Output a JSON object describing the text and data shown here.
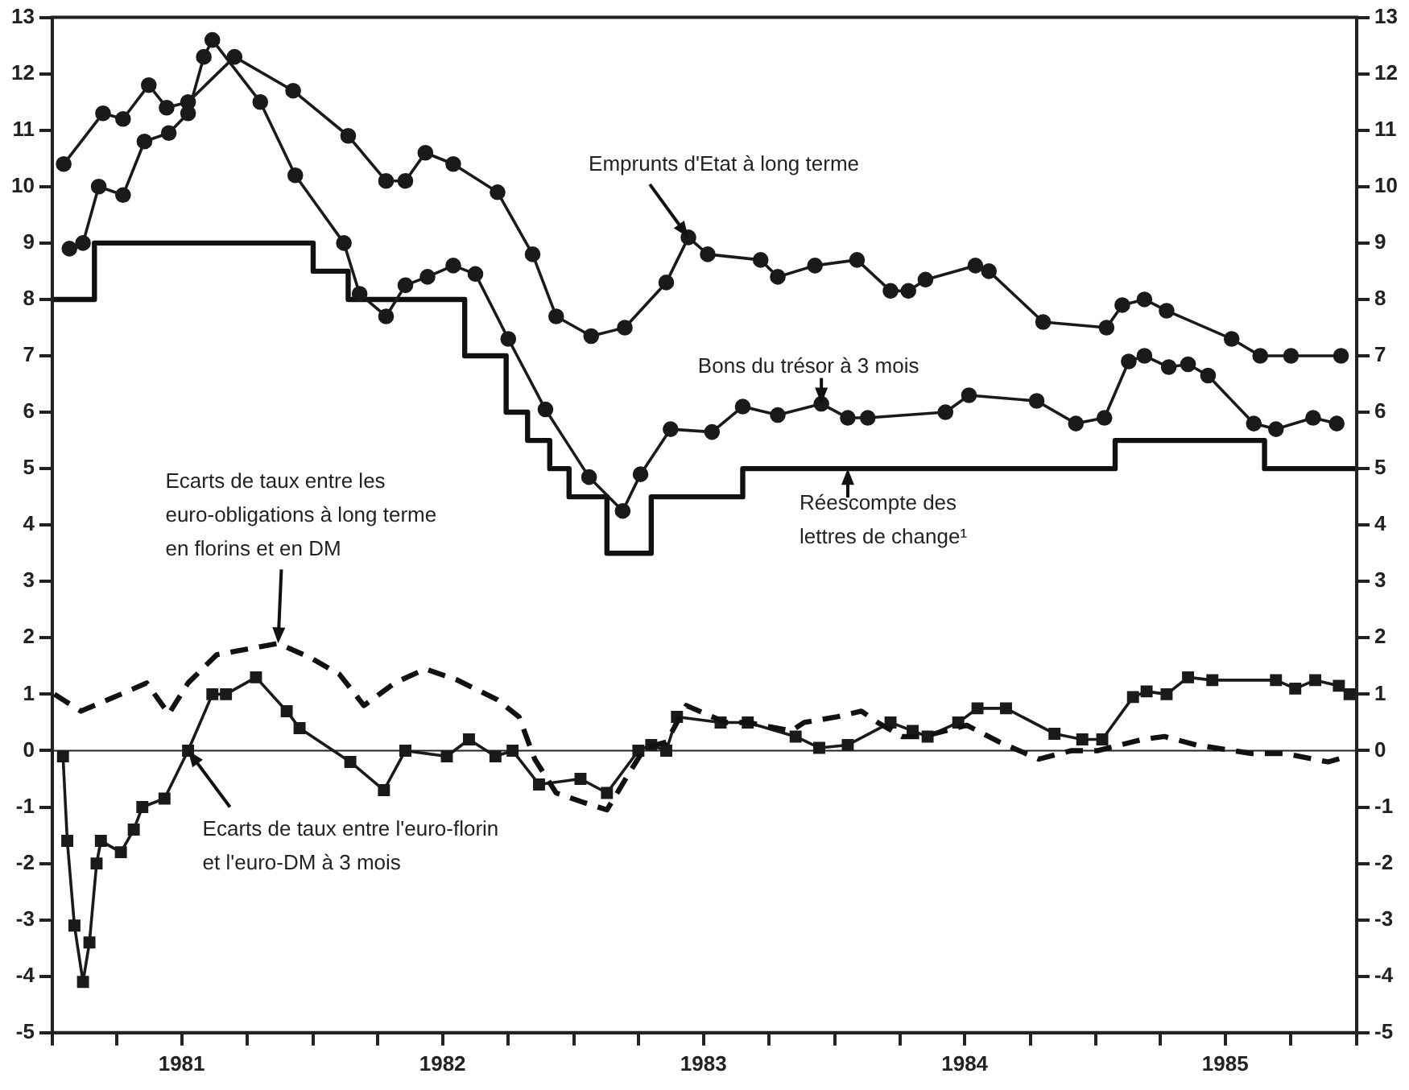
{
  "chart_data": {
    "type": "line",
    "xlim": [
      "1981-01-01",
      "1986-01-01"
    ],
    "xticks": [
      {
        "value": "1981-01-01",
        "label": null
      },
      {
        "value": "1981-04-01",
        "label": null
      },
      {
        "value": "1981-07-01",
        "label": "1981"
      },
      {
        "value": "1981-10-01",
        "label": null
      },
      {
        "value": "1982-01-01",
        "label": null
      },
      {
        "value": "1982-04-01",
        "label": null
      },
      {
        "value": "1982-07-01",
        "label": "1982"
      },
      {
        "value": "1982-10-01",
        "label": null
      },
      {
        "value": "1983-01-01",
        "label": null
      },
      {
        "value": "1983-04-01",
        "label": null
      },
      {
        "value": "1983-07-01",
        "label": "1983"
      },
      {
        "value": "1983-10-01",
        "label": null
      },
      {
        "value": "1984-01-01",
        "label": null
      },
      {
        "value": "1984-04-01",
        "label": null
      },
      {
        "value": "1984-07-01",
        "label": "1984"
      },
      {
        "value": "1984-10-01",
        "label": null
      },
      {
        "value": "1985-01-01",
        "label": null
      },
      {
        "value": "1985-04-01",
        "label": null
      },
      {
        "value": "1985-07-01",
        "label": "1985"
      },
      {
        "value": "1985-10-01",
        "label": null
      },
      {
        "value": "1986-01-01",
        "label": null
      }
    ],
    "ylim": [
      -5,
      13
    ],
    "yticks": [
      -5,
      -4,
      -3,
      -2,
      -1,
      0,
      1,
      2,
      3,
      4,
      5,
      6,
      7,
      8,
      9,
      10,
      11,
      12,
      13
    ],
    "y2lim": [
      -5,
      13
    ],
    "y2ticks": [
      -5,
      -4,
      -3,
      -2,
      -1,
      0,
      1,
      2,
      3,
      4,
      5,
      6,
      7,
      8,
      9,
      10,
      11,
      12,
      13
    ],
    "series": [
      {
        "color": "#1a1a1a",
        "marker": "circle",
        "x": [
          "1981-01-17",
          "1981-03-13",
          "1981-04-10",
          "1981-05-16",
          "1981-06-10",
          "1981-07-10",
          "1981-09-13",
          "1981-12-04",
          "1982-02-19",
          "1982-04-13",
          "1982-05-10",
          "1982-06-07",
          "1982-07-16",
          "1982-09-16",
          "1982-11-04",
          "1982-12-07",
          "1983-01-25",
          "1983-03-13",
          "1983-05-10",
          "1983-06-10",
          "1983-07-07",
          "1983-09-19",
          "1983-10-13",
          "1983-12-04",
          "1984-02-01",
          "1984-03-19",
          "1984-04-13",
          "1984-05-07",
          "1984-07-16",
          "1984-08-04",
          "1984-10-19",
          "1985-01-16",
          "1985-02-07",
          "1985-03-10",
          "1985-04-10",
          "1985-07-10",
          "1985-08-19",
          "1985-10-01",
          "1985-12-10"
        ],
        "values": [
          10.4,
          11.3,
          11.2,
          11.8,
          11.4,
          11.5,
          12.3,
          11.7,
          10.9,
          10.1,
          10.1,
          10.6,
          10.4,
          9.9,
          8.8,
          7.7,
          7.35,
          7.5,
          8.3,
          9.1,
          8.8,
          8.7,
          8.4,
          8.6,
          8.7,
          8.15,
          8.15,
          8.35,
          8.6,
          8.5,
          7.6,
          7.5,
          7.9,
          8.0,
          7.8,
          7.3,
          7.0,
          7.0,
          7.0
        ]
      },
      {
        "color": "#1a1a1a",
        "marker": "circle",
        "x": [
          "1981-01-25",
          "1981-02-13",
          "1981-03-07",
          "1981-04-10",
          "1981-05-10",
          "1981-06-13",
          "1981-07-10",
          "1981-08-01",
          "1981-08-13",
          "1981-10-19",
          "1981-12-07",
          "1982-02-13",
          "1982-03-07",
          "1982-04-13",
          "1982-05-10",
          "1982-06-10",
          "1982-07-16",
          "1982-08-16",
          "1982-10-01",
          "1982-11-22",
          "1983-01-22",
          "1983-03-10",
          "1983-04-04",
          "1983-05-16",
          "1983-07-13",
          "1983-08-25",
          "1983-10-13",
          "1983-12-13",
          "1984-01-19",
          "1984-02-16",
          "1984-06-04",
          "1984-07-07",
          "1984-10-10",
          "1984-12-04",
          "1985-01-13",
          "1985-02-16",
          "1985-03-10",
          "1985-04-13",
          "1985-05-10",
          "1985-06-07",
          "1985-08-10",
          "1985-09-10",
          "1985-11-01",
          "1985-12-04"
        ],
        "values": [
          8.9,
          9.0,
          10.0,
          9.85,
          10.8,
          10.95,
          11.3,
          12.3,
          12.6,
          11.5,
          10.2,
          9.0,
          8.1,
          7.7,
          8.25,
          8.4,
          8.6,
          8.45,
          7.3,
          6.05,
          4.85,
          4.25,
          4.9,
          5.7,
          5.65,
          6.1,
          5.95,
          6.15,
          5.9,
          5.9,
          6.0,
          6.3,
          6.2,
          5.8,
          5.9,
          6.9,
          7.0,
          6.8,
          6.85,
          6.65,
          5.8,
          5.7,
          5.9,
          5.8
        ]
      },
      {
        "type": "step",
        "color": "#111111",
        "marker": "none",
        "x": [
          "1981-01-01",
          "1981-03-01",
          "1982-01-01",
          "1982-02-19",
          "1982-08-01",
          "1982-09-28",
          "1982-10-28",
          "1982-11-28",
          "1982-12-25",
          "1983-02-16",
          "1983-04-19",
          "1983-08-25",
          "1985-01-28",
          "1985-08-25",
          "1986-01-01"
        ],
        "values": [
          8,
          9,
          8.5,
          8,
          7,
          6,
          5.5,
          5,
          4.5,
          3.5,
          4.5,
          5,
          5.5,
          5,
          5
        ]
      },
      {
        "color": "#111111",
        "marker": "none",
        "line_style": "dashed",
        "x": [
          "1981-01-04",
          "1981-02-10",
          "1981-04-07",
          "1981-05-13",
          "1981-06-13",
          "1981-07-10",
          "1981-08-19",
          "1981-11-13",
          "1981-12-28",
          "1982-02-07",
          "1982-03-13",
          "1982-04-25",
          "1982-06-07",
          "1982-07-22",
          "1982-09-16",
          "1982-10-16",
          "1982-11-07",
          "1982-12-07",
          "1983-01-10",
          "1983-02-16",
          "1983-03-19",
          "1983-04-10",
          "1983-05-10",
          "1983-06-07",
          "1983-08-01",
          "1983-09-01",
          "1983-11-01",
          "1983-11-19",
          "1984-01-04",
          "1984-02-07",
          "1984-03-01",
          "1984-04-04",
          "1984-05-04",
          "1984-07-04",
          "1984-08-19",
          "1984-10-13",
          "1984-11-28",
          "1985-01-04",
          "1985-03-07",
          "1985-04-07",
          "1985-05-22",
          "1985-08-07",
          "1985-09-22",
          "1985-11-22",
          "1985-12-19"
        ],
        "values": [
          1.0,
          0.7,
          1.0,
          1.2,
          0.65,
          1.2,
          1.7,
          1.9,
          1.65,
          1.35,
          0.8,
          1.2,
          1.45,
          1.25,
          0.9,
          0.6,
          -0.15,
          -0.75,
          -0.9,
          -1.05,
          -0.4,
          0.05,
          0.15,
          0.8,
          0.5,
          0.5,
          0.35,
          0.5,
          0.6,
          0.7,
          0.5,
          0.25,
          0.25,
          0.45,
          0.15,
          -0.15,
          0.0,
          0.0,
          0.2,
          0.25,
          0.1,
          -0.05,
          -0.05,
          -0.2,
          -0.1
        ]
      },
      {
        "color": "#1a1a1a",
        "marker": "square",
        "x": [
          "1981-01-16",
          "1981-01-22",
          "1981-02-01",
          "1981-02-13",
          "1981-02-22",
          "1981-03-04",
          "1981-03-10",
          "1981-04-07",
          "1981-04-25",
          "1981-05-07",
          "1981-06-07",
          "1981-07-10",
          "1981-08-13",
          "1981-09-01",
          "1981-10-13",
          "1981-11-25",
          "1981-12-13",
          "1982-02-22",
          "1982-04-10",
          "1982-05-10",
          "1982-07-07",
          "1982-08-07",
          "1982-09-13",
          "1982-10-07",
          "1982-11-13",
          "1983-01-10",
          "1983-02-16",
          "1983-04-01",
          "1983-04-19",
          "1983-05-10",
          "1983-05-25",
          "1983-07-25",
          "1983-09-01",
          "1983-11-07",
          "1983-12-10",
          "1984-01-19",
          "1984-03-19",
          "1984-04-19",
          "1984-05-10",
          "1984-06-22",
          "1984-07-19",
          "1984-08-28",
          "1984-11-04",
          "1984-12-13",
          "1985-01-10",
          "1985-02-22",
          "1985-03-13",
          "1985-04-10",
          "1985-05-10",
          "1985-06-13",
          "1985-09-10",
          "1985-10-07",
          "1985-11-04",
          "1985-12-07",
          "1985-12-22"
        ],
        "values": [
          -0.1,
          -1.6,
          -3.1,
          -4.1,
          -3.4,
          -2.0,
          -1.6,
          -1.8,
          -1.4,
          -1.0,
          -0.85,
          0.0,
          1.0,
          1.0,
          1.3,
          0.7,
          0.4,
          -0.2,
          -0.7,
          0.0,
          -0.1,
          0.2,
          -0.1,
          0.0,
          -0.6,
          -0.5,
          -0.75,
          0.0,
          0.1,
          0.0,
          0.6,
          0.5,
          0.5,
          0.25,
          0.05,
          0.1,
          0.5,
          0.35,
          0.25,
          0.5,
          0.75,
          0.75,
          0.3,
          0.2,
          0.2,
          0.95,
          1.05,
          1.0,
          1.3,
          1.25,
          1.25,
          1.1,
          1.25,
          1.15,
          1.0
        ]
      }
    ],
    "ref_lines": [
      {
        "axis": "y",
        "value": 0,
        "color": "#222222"
      }
    ],
    "annotations": [
      {
        "text": "Emprunts d'Etat à long terme",
        "x": "1983-06-10",
        "y": 9.1
      },
      {
        "text": "Bons du trésor à 3 mois",
        "x": "1983-12-13",
        "y": 6.15
      },
      {
        "text": "Réescompte des\nlettres de change¹",
        "x": "1984-01-19",
        "y": 5
      },
      {
        "text": "Ecarts de taux entre les\neuro-obligations à long terme\nen florins et en DM",
        "x": "1981-11-13",
        "y": 1.9
      },
      {
        "text": "Ecarts de taux entre l'euro-florin\net l'euro-DM à 3 mois",
        "x": "1981-07-10",
        "y": 0.0
      }
    ]
  }
}
